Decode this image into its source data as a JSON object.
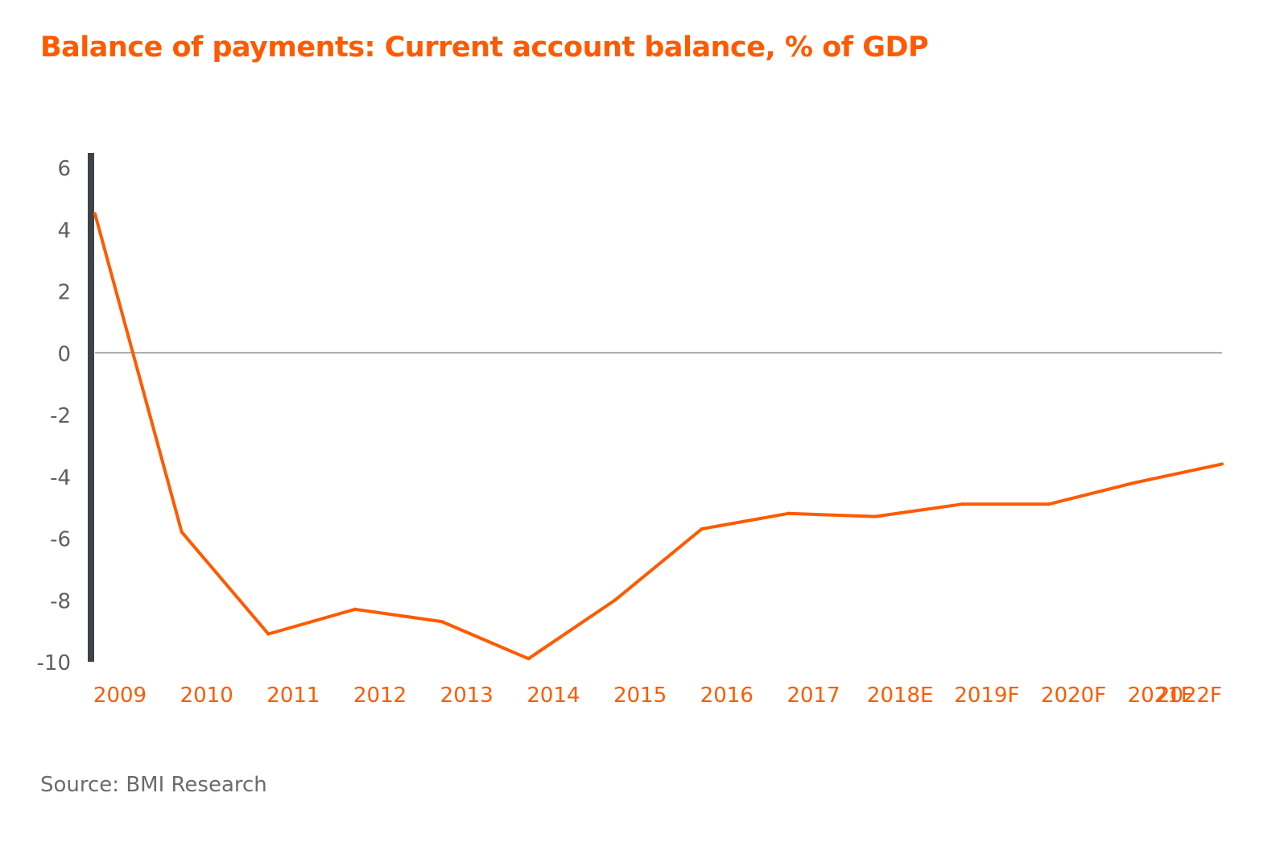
{
  "colors": {
    "accent": "#FF5A00",
    "tick_text": "#5f5f5f",
    "y_axis_line": "#3e4347",
    "zero_line": "#8a8a8a",
    "source_text": "#6b6b6b",
    "background": "#ffffff"
  },
  "chart_data": {
    "type": "line",
    "title": "Balance of payments: Current account balance, % of GDP",
    "xlabel": "",
    "ylabel": "",
    "categories": [
      "2009",
      "2010",
      "2011",
      "2012",
      "2013",
      "2014",
      "2015",
      "2016",
      "2017",
      "2018E",
      "2019F",
      "2020F",
      "2021F",
      "2022F"
    ],
    "series": [
      {
        "values": [
          4.5,
          -5.8,
          -9.1,
          -8.3,
          -8.7,
          -9.9,
          -8.0,
          -5.7,
          -5.2,
          -5.3,
          -4.9,
          -4.9,
          -4.2,
          -3.6
        ]
      }
    ],
    "ylim": [
      -10,
      6
    ],
    "yticks": [
      6,
      4,
      2,
      0,
      -2,
      -4,
      -6,
      -8,
      -10
    ],
    "grid": false,
    "legend": "none"
  },
  "source": "Source: BMI Research"
}
